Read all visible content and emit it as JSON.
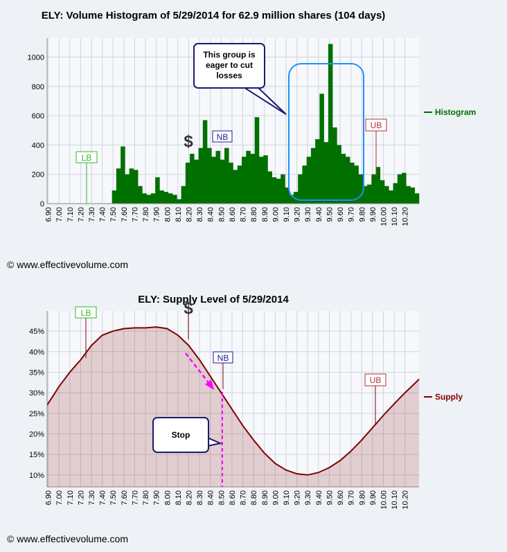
{
  "chart_data": [
    {
      "type": "histogram",
      "title": "ELY: Volume Histogram of 5/29/2014 for 62.9 million shares (104 days)",
      "bins": [
        6.89,
        6.93,
        6.97,
        7.01,
        7.05,
        7.09,
        7.13,
        7.17,
        7.21,
        7.25,
        7.29,
        7.33,
        7.37,
        7.41,
        7.45,
        7.49,
        7.53,
        7.57,
        7.61,
        7.65,
        7.69,
        7.73,
        7.77,
        7.81,
        7.85,
        7.89,
        7.93,
        7.97,
        8.01,
        8.05,
        8.09,
        8.13,
        8.17,
        8.21,
        8.25,
        8.29,
        8.33,
        8.37,
        8.41,
        8.45,
        8.49,
        8.53,
        8.57,
        8.61,
        8.65,
        8.69,
        8.73,
        8.77,
        8.81,
        8.85,
        8.89,
        8.93,
        8.97,
        9.01,
        9.05,
        9.09,
        9.13,
        9.17,
        9.21,
        9.25,
        9.29,
        9.33,
        9.37,
        9.41,
        9.45,
        9.49,
        9.53,
        9.57,
        9.61,
        9.65,
        9.69,
        9.73,
        9.77,
        9.81,
        9.85,
        9.89,
        9.93,
        9.97,
        10.01,
        10.05,
        10.09,
        10.13,
        10.17,
        10.21,
        10.25,
        10.29,
        10.33
      ],
      "series": [
        {
          "name": "Histogram",
          "color": "#007000",
          "values": [
            0,
            0,
            0,
            0,
            0,
            0,
            0,
            0,
            0,
            0,
            0,
            0,
            0,
            0,
            0,
            90,
            240,
            390,
            200,
            240,
            230,
            120,
            70,
            60,
            70,
            180,
            90,
            80,
            70,
            60,
            30,
            120,
            280,
            340,
            300,
            380,
            570,
            380,
            320,
            360,
            300,
            380,
            280,
            230,
            260,
            320,
            360,
            340,
            590,
            320,
            330,
            220,
            180,
            170,
            200,
            110,
            60,
            80,
            200,
            260,
            320,
            380,
            440,
            750,
            420,
            1090,
            520,
            400,
            340,
            320,
            280,
            260,
            200,
            120,
            130,
            200,
            250,
            160,
            120,
            90,
            140,
            200,
            210,
            120,
            110,
            70
          ]
        }
      ],
      "xlim": [
        6.89,
        10.33
      ],
      "ylim": [
        0,
        1130
      ],
      "xticks": [
        {
          "value": 6.9,
          "label": "6.90"
        },
        {
          "value": 7.0,
          "label": "7.00"
        },
        {
          "value": 7.1,
          "label": "7.10"
        },
        {
          "value": 7.2,
          "label": "7.20"
        },
        {
          "value": 7.3,
          "label": "7.30"
        },
        {
          "value": 7.4,
          "label": "7.40"
        },
        {
          "value": 7.5,
          "label": "7.50"
        },
        {
          "value": 7.6,
          "label": "7.60"
        },
        {
          "value": 7.7,
          "label": "7.70"
        },
        {
          "value": 7.8,
          "label": "7.80"
        },
        {
          "value": 7.9,
          "label": "7.90"
        },
        {
          "value": 8.0,
          "label": "8.00"
        },
        {
          "value": 8.1,
          "label": "8.10"
        },
        {
          "value": 8.2,
          "label": "8.20"
        },
        {
          "value": 8.3,
          "label": "8.30"
        },
        {
          "value": 8.4,
          "label": "8.40"
        },
        {
          "value": 8.5,
          "label": "8.50"
        },
        {
          "value": 8.6,
          "label": "8.60"
        },
        {
          "value": 8.7,
          "label": "8.70"
        },
        {
          "value": 8.8,
          "label": "8.80"
        },
        {
          "value": 8.9,
          "label": "8.90"
        },
        {
          "value": 9.0,
          "label": "9.00"
        },
        {
          "value": 9.1,
          "label": "9.10"
        },
        {
          "value": 9.2,
          "label": "9.20"
        },
        {
          "value": 9.3,
          "label": "9.30"
        },
        {
          "value": 9.4,
          "label": "9.40"
        },
        {
          "value": 9.5,
          "label": "9.50"
        },
        {
          "value": 9.6,
          "label": "9.60"
        },
        {
          "value": 9.7,
          "label": "9.70"
        },
        {
          "value": 9.8,
          "label": "9.80"
        },
        {
          "value": 9.9,
          "label": "9.90"
        },
        {
          "value": 10.0,
          "label": "10.00"
        },
        {
          "value": 10.1,
          "label": "10.10"
        },
        {
          "value": 10.2,
          "label": "10.20"
        }
      ],
      "yticks": [
        0,
        200,
        400,
        600,
        800,
        1000
      ],
      "grid": true,
      "annotations": [
        "This group is eager to cut losses",
        "LB",
        "NB",
        "UB",
        "$"
      ],
      "source": "© www.effectivevolume.com"
    },
    {
      "type": "area",
      "title": "ELY: Supply Level of 5/29/2014",
      "x": [
        6.89,
        7.0,
        7.1,
        7.2,
        7.3,
        7.4,
        7.5,
        7.6,
        7.7,
        7.8,
        7.9,
        8.0,
        8.1,
        8.2,
        8.3,
        8.4,
        8.5,
        8.6,
        8.7,
        8.8,
        8.9,
        9.0,
        9.1,
        9.2,
        9.3,
        9.4,
        9.5,
        9.6,
        9.7,
        9.8,
        9.9,
        10.0,
        10.1,
        10.2,
        10.3,
        10.33
      ],
      "series": [
        {
          "name": "Supply",
          "color": "#800000",
          "values": [
            27,
            31.5,
            35,
            38,
            41.5,
            44,
            45,
            45.6,
            45.8,
            45.8,
            46,
            45.6,
            44,
            41.5,
            38,
            34,
            30,
            26,
            22,
            18.5,
            15.3,
            12.8,
            11.2,
            10.3,
            10,
            10.6,
            11.8,
            13.5,
            15.8,
            18.5,
            21.5,
            24.5,
            27.3,
            30,
            32.5,
            33.3
          ]
        }
      ],
      "xlim": [
        6.89,
        10.33
      ],
      "ylim": [
        7.1,
        49.9
      ],
      "xticks": [
        {
          "value": 6.9,
          "label": "6.90"
        },
        {
          "value": 7.0,
          "label": "7.00"
        },
        {
          "value": 7.1,
          "label": "7.10"
        },
        {
          "value": 7.2,
          "label": "7.20"
        },
        {
          "value": 7.3,
          "label": "7.30"
        },
        {
          "value": 7.4,
          "label": "7.40"
        },
        {
          "value": 7.5,
          "label": "7.50"
        },
        {
          "value": 7.6,
          "label": "7.60"
        },
        {
          "value": 7.7,
          "label": "7.70"
        },
        {
          "value": 7.8,
          "label": "7.80"
        },
        {
          "value": 7.9,
          "label": "7.90"
        },
        {
          "value": 8.0,
          "label": "8.00"
        },
        {
          "value": 8.1,
          "label": "8.10"
        },
        {
          "value": 8.2,
          "label": "8.20"
        },
        {
          "value": 8.3,
          "label": "8.30"
        },
        {
          "value": 8.4,
          "label": "8.40"
        },
        {
          "value": 8.5,
          "label": "8.50"
        },
        {
          "value": 8.6,
          "label": "8.60"
        },
        {
          "value": 8.7,
          "label": "8.70"
        },
        {
          "value": 8.8,
          "label": "8.80"
        },
        {
          "value": 8.9,
          "label": "8.90"
        },
        {
          "value": 9.0,
          "label": "9.00"
        },
        {
          "value": 9.1,
          "label": "9.10"
        },
        {
          "value": 9.2,
          "label": "9.20"
        },
        {
          "value": 9.3,
          "label": "9.30"
        },
        {
          "value": 9.4,
          "label": "9.40"
        },
        {
          "value": 9.5,
          "label": "9.50"
        },
        {
          "value": 9.6,
          "label": "9.60"
        },
        {
          "value": 9.7,
          "label": "9.70"
        },
        {
          "value": 9.8,
          "label": "9.80"
        },
        {
          "value": 9.9,
          "label": "9.90"
        },
        {
          "value": 10.0,
          "label": "10.00"
        },
        {
          "value": 10.1,
          "label": "10.10"
        },
        {
          "value": 10.2,
          "label": "10.20"
        }
      ],
      "yticks": [
        {
          "value": 10,
          "label": "10%"
        },
        {
          "value": 15,
          "label": "15%"
        },
        {
          "value": 20,
          "label": "20%"
        },
        {
          "value": 25,
          "label": "25%"
        },
        {
          "value": 30,
          "label": "30%"
        },
        {
          "value": 35,
          "label": "35%"
        },
        {
          "value": 40,
          "label": "40%"
        },
        {
          "value": 45,
          "label": "45%"
        }
      ],
      "grid": true,
      "annotations": [
        "LB",
        "NB",
        "UB",
        "$",
        "Stop"
      ],
      "source": "© www.effectivevolume.com"
    }
  ]
}
